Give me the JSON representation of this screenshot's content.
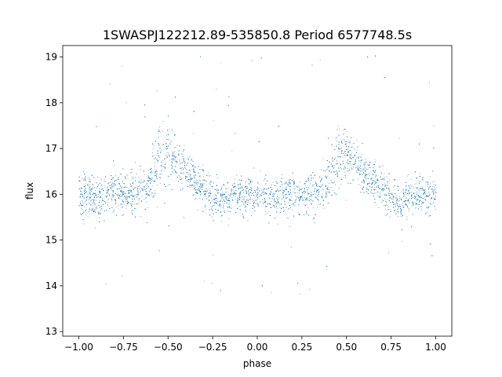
{
  "chart_data": {
    "type": "scatter",
    "title": "1SWASPJ122212.89-535850.8 Period 6577748.5s",
    "xlabel": "phase",
    "ylabel": "flux",
    "xlim": [
      -1.09,
      1.09
    ],
    "ylim": [
      12.9,
      19.25
    ],
    "grid": false,
    "legend": "none",
    "point_color": "#1f77b4",
    "x_ticks": [
      -1.0,
      -0.75,
      -0.5,
      -0.25,
      0.0,
      0.25,
      0.5,
      0.75,
      1.0
    ],
    "x_tick_labels": [
      "−1.00",
      "−0.75",
      "−0.50",
      "−0.25",
      "0.00",
      "0.25",
      "0.50",
      "0.75",
      "1.00"
    ],
    "y_ticks": [
      13,
      14,
      15,
      16,
      17,
      18,
      19
    ],
    "y_tick_labels": [
      "13",
      "14",
      "15",
      "16",
      "17",
      "18",
      "19"
    ],
    "series": [
      {
        "phase": [
          -1.0,
          -0.95,
          -0.9,
          -0.85,
          -0.8,
          -0.75,
          -0.7,
          -0.65,
          -0.6,
          -0.55,
          -0.5,
          -0.45,
          -0.4,
          -0.35,
          -0.3,
          -0.25,
          -0.2,
          -0.15,
          -0.1,
          -0.05,
          0.0,
          0.05,
          0.1,
          0.15,
          0.2,
          0.25,
          0.3,
          0.35,
          0.4,
          0.45,
          0.5,
          0.55,
          0.6,
          0.65,
          0.7,
          0.75,
          0.8,
          0.85,
          0.9,
          0.95,
          1.0
        ],
        "median_flux": [
          16.0,
          16.0,
          15.9,
          16.0,
          16.05,
          16.0,
          16.0,
          16.1,
          16.3,
          16.9,
          16.9,
          16.7,
          16.5,
          16.3,
          16.1,
          15.9,
          15.85,
          16.0,
          16.0,
          16.0,
          16.0,
          16.0,
          15.9,
          16.0,
          16.05,
          16.0,
          16.0,
          16.1,
          16.3,
          16.9,
          16.9,
          16.7,
          16.5,
          16.3,
          16.1,
          15.9,
          15.85,
          16.0,
          16.0,
          16.0,
          16.0
        ],
        "spread": [
          0.3,
          0.3,
          0.3,
          0.3,
          0.35,
          0.3,
          0.35,
          0.3,
          0.35,
          0.5,
          0.45,
          0.35,
          0.3,
          0.3,
          0.3,
          0.3,
          0.3,
          0.3,
          0.3,
          0.3,
          0.25,
          0.3,
          0.3,
          0.3,
          0.35,
          0.3,
          0.35,
          0.3,
          0.35,
          0.5,
          0.45,
          0.35,
          0.3,
          0.3,
          0.3,
          0.3,
          0.3,
          0.3,
          0.3,
          0.3,
          0.3
        ]
      }
    ]
  }
}
